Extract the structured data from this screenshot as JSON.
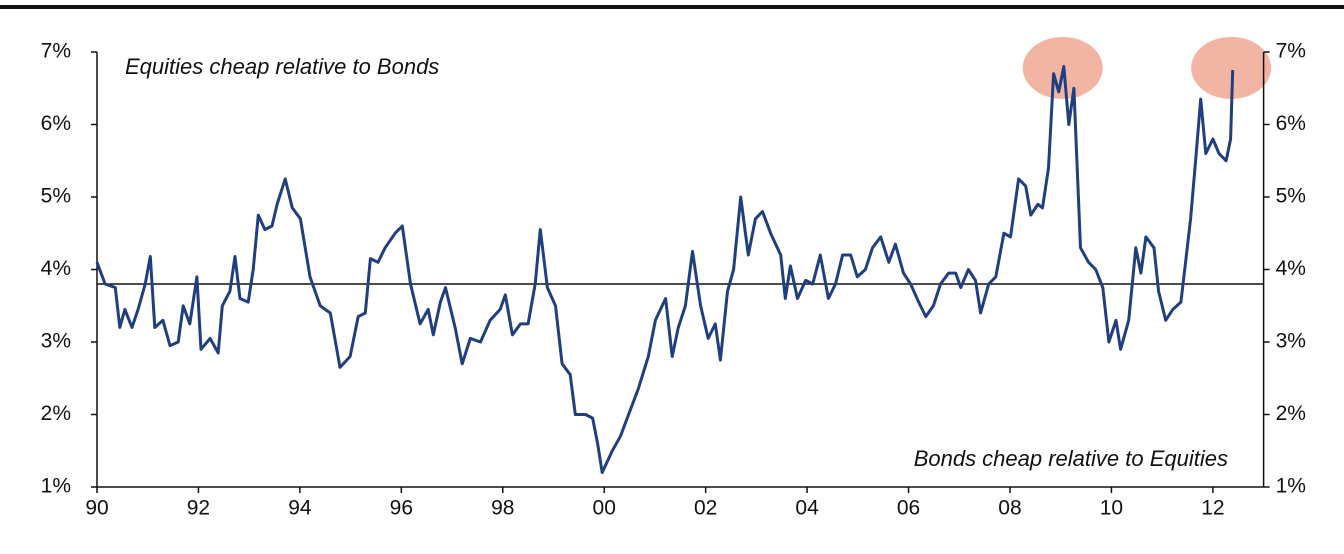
{
  "chart_data": {
    "type": "line",
    "annotations": [
      "Equities cheap relative to Bonds",
      "Bonds cheap relative to Equities"
    ],
    "x": [
      1990.0,
      1990.16,
      1990.36,
      1990.45,
      1990.55,
      1990.69,
      1990.81,
      1990.95,
      1991.05,
      1991.14,
      1991.3,
      1991.44,
      1991.6,
      1991.7,
      1991.83,
      1991.97,
      1992.05,
      1992.23,
      1992.39,
      1992.47,
      1992.62,
      1992.72,
      1992.82,
      1992.98,
      1993.08,
      1993.18,
      1993.31,
      1993.45,
      1993.55,
      1993.71,
      1993.85,
      1994.01,
      1994.2,
      1994.4,
      1994.6,
      1994.79,
      1994.99,
      1995.15,
      1995.29,
      1995.39,
      1995.54,
      1995.68,
      1995.88,
      1996.02,
      1996.18,
      1996.37,
      1996.53,
      1996.63,
      1996.77,
      1996.87,
      1997.06,
      1997.2,
      1997.36,
      1997.56,
      1997.75,
      1997.95,
      1998.05,
      1998.19,
      1998.35,
      1998.5,
      1998.64,
      1998.74,
      1998.88,
      1999.04,
      1999.17,
      1999.33,
      1999.43,
      1999.63,
      1999.77,
      1999.87,
      1999.96,
      2000.16,
      2000.32,
      2000.48,
      2000.67,
      2000.87,
      2001.01,
      2001.21,
      2001.34,
      2001.46,
      2001.6,
      2001.74,
      2001.9,
      2002.05,
      2002.19,
      2002.29,
      2002.43,
      2002.55,
      2002.69,
      2002.84,
      2002.98,
      2003.12,
      2003.28,
      2003.48,
      2003.57,
      2003.67,
      2003.81,
      2003.97,
      2004.11,
      2004.26,
      2004.42,
      2004.56,
      2004.7,
      2004.86,
      2004.99,
      2005.15,
      2005.29,
      2005.45,
      2005.61,
      2005.74,
      2005.9,
      2006.04,
      2006.2,
      2006.34,
      2006.49,
      2006.63,
      2006.79,
      2006.93,
      2007.03,
      2007.18,
      2007.32,
      2007.42,
      2007.58,
      2007.72,
      2007.88,
      2008.01,
      2008.17,
      2008.31,
      2008.41,
      2008.55,
      2008.64,
      2008.76,
      2008.86,
      2008.96,
      2009.06,
      2009.16,
      2009.26,
      2009.39,
      2009.55,
      2009.69,
      2009.83,
      2009.95,
      2010.09,
      2010.18,
      2010.34,
      2010.48,
      2010.58,
      2010.68,
      2010.84,
      2010.93,
      2011.07,
      2011.21,
      2011.37,
      2011.47,
      2011.56,
      2011.66,
      2011.76,
      2011.86,
      2012.0,
      2012.12,
      2012.26,
      2012.35,
      2012.39
    ],
    "series": [
      {
        "color": "#1f3f7f",
        "values": [
          4.1,
          3.8,
          3.75,
          3.2,
          3.45,
          3.2,
          3.45,
          3.8,
          4.18,
          3.2,
          3.3,
          2.95,
          3.0,
          3.5,
          3.25,
          3.9,
          2.9,
          3.05,
          2.85,
          3.5,
          3.7,
          4.18,
          3.6,
          3.55,
          4.0,
          4.75,
          4.55,
          4.6,
          4.9,
          5.25,
          4.85,
          4.7,
          3.9,
          3.5,
          3.4,
          2.65,
          2.8,
          3.35,
          3.4,
          4.15,
          4.1,
          4.3,
          4.5,
          4.6,
          3.8,
          3.25,
          3.45,
          3.1,
          3.55,
          3.75,
          3.2,
          2.7,
          3.05,
          3.0,
          3.3,
          3.45,
          3.65,
          3.1,
          3.25,
          3.25,
          3.8,
          4.55,
          3.75,
          3.5,
          2.7,
          2.55,
          2.0,
          2.0,
          1.95,
          1.6,
          1.2,
          1.5,
          1.7,
          2.0,
          2.35,
          2.8,
          3.3,
          3.6,
          2.8,
          3.2,
          3.5,
          4.25,
          3.5,
          3.05,
          3.25,
          2.75,
          3.7,
          4.0,
          5.0,
          4.2,
          4.7,
          4.8,
          4.5,
          4.2,
          3.6,
          4.05,
          3.6,
          3.85,
          3.8,
          4.2,
          3.6,
          3.8,
          4.2,
          4.2,
          3.9,
          4.0,
          4.3,
          4.45,
          4.1,
          4.35,
          3.95,
          3.8,
          3.55,
          3.35,
          3.5,
          3.8,
          3.95,
          3.95,
          3.75,
          4.0,
          3.85,
          3.4,
          3.8,
          3.9,
          4.5,
          4.45,
          5.25,
          5.15,
          4.75,
          4.9,
          4.85,
          5.4,
          6.7,
          6.45,
          6.8,
          6.0,
          6.5,
          4.3,
          4.1,
          4.0,
          3.75,
          3.0,
          3.3,
          2.9,
          3.3,
          4.3,
          3.95,
          4.45,
          4.3,
          3.7,
          3.3,
          3.45,
          3.55,
          4.15,
          4.7,
          5.5,
          6.35,
          5.6,
          5.8,
          5.6,
          5.5,
          5.8,
          6.75
        ]
      }
    ],
    "reference_line": 3.8,
    "highlights": [
      {
        "x": 2009.04,
        "y": 6.78
      },
      {
        "x": 2012.36,
        "y": 6.78
      }
    ],
    "highlight_color": "#f2b5a4",
    "xlim": [
      1990,
      2013
    ],
    "xticks": [
      {
        "value": 1990,
        "label": "90"
      },
      {
        "value": 1992,
        "label": "92"
      },
      {
        "value": 1994,
        "label": "94"
      },
      {
        "value": 1996,
        "label": "96"
      },
      {
        "value": 1998,
        "label": "98"
      },
      {
        "value": 2000,
        "label": "00"
      },
      {
        "value": 2002,
        "label": "02"
      },
      {
        "value": 2004,
        "label": "04"
      },
      {
        "value": 2006,
        "label": "06"
      },
      {
        "value": 2008,
        "label": "08"
      },
      {
        "value": 2010,
        "label": "10"
      },
      {
        "value": 2012,
        "label": "12"
      }
    ],
    "ylim": [
      1,
      7
    ],
    "yticks": [
      {
        "value": 1,
        "label": "1%"
      },
      {
        "value": 2,
        "label": "2%"
      },
      {
        "value": 3,
        "label": "3%"
      },
      {
        "value": 4,
        "label": "4%"
      },
      {
        "value": 5,
        "label": "5%"
      },
      {
        "value": 6,
        "label": "6%"
      },
      {
        "value": 7,
        "label": "7%"
      }
    ],
    "y2lim": [
      1,
      7
    ],
    "y2ticks": [
      {
        "value": 1,
        "label": "1%"
      },
      {
        "value": 2,
        "label": "2%"
      },
      {
        "value": 3,
        "label": "3%"
      },
      {
        "value": 4,
        "label": "4%"
      },
      {
        "value": 5,
        "label": "5%"
      },
      {
        "value": 6,
        "label": "6%"
      },
      {
        "value": 7,
        "label": "7%"
      }
    ]
  }
}
